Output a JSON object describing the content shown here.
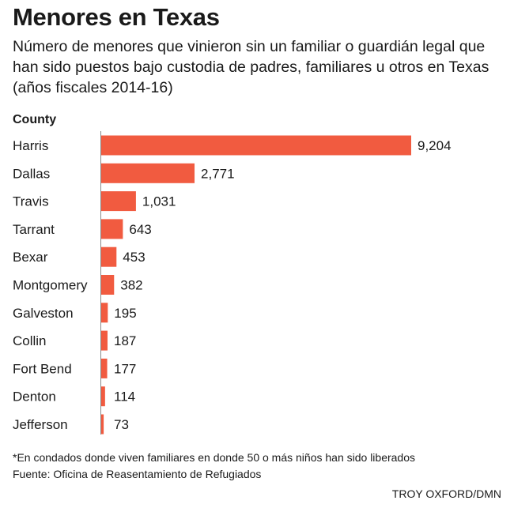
{
  "title": "Menores en Texas",
  "subtitle": "Número de menores que vinieron sin un familiar  o guardián legal que han sido puestos bajo custodia de padres, familiares u otros en Texas (años fiscales 2014-16)",
  "footnote": "*En condados donde viven familiares  en donde 50 o más niños han sido liberados",
  "source": "Fuente: Oficina de Reasentamiento de Refugiados",
  "credit": "TROY OXFORD/DMN",
  "colors": {
    "bar": "#f15b40",
    "axis": "#888888",
    "text": "#1a1a1a"
  },
  "chart_data": {
    "type": "bar",
    "orientation": "horizontal",
    "ylabel": "County",
    "categories": [
      "Harris",
      "Dallas",
      "Travis",
      "Tarrant",
      "Bexar",
      "Montgomery",
      "Galveston",
      "Collin",
      "Fort Bend",
      "Denton",
      "Jefferson"
    ],
    "values": [
      9204,
      2771,
      1031,
      643,
      453,
      382,
      195,
      187,
      177,
      114,
      73
    ],
    "value_labels": [
      "9,204",
      "2,771",
      "1,031",
      "643",
      "453",
      "382",
      "195",
      "187",
      "177",
      "114",
      "73"
    ],
    "xlim": [
      0,
      9204
    ],
    "grid": false,
    "legend": "none"
  }
}
